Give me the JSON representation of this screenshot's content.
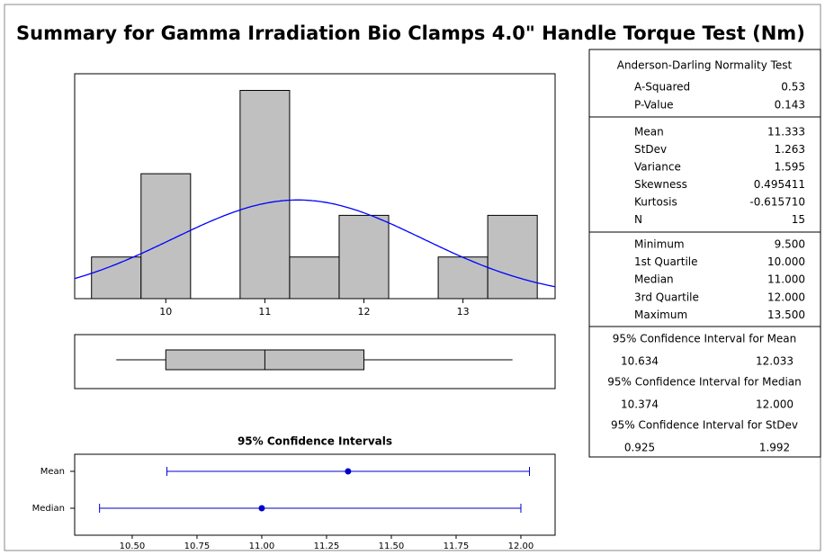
{
  "title": "Summary for Gamma Irradiation Bio Clamps 4.0\" Handle Torque Test (Nm)",
  "chart_data": [
    {
      "type": "histogram",
      "bins": [
        9.25,
        9.75,
        10.25,
        10.75,
        11.25,
        11.75,
        12.25,
        12.75,
        13.25,
        13.75
      ],
      "counts": [
        1,
        3,
        0,
        5,
        1,
        2,
        0,
        1,
        2
      ],
      "color": "#c0c0c0",
      "curve_color": "#0000ff",
      "xlim": [
        9.08,
        13.93
      ],
      "ylim": [
        0,
        5.4
      ],
      "xticks": [
        10,
        11,
        12,
        13
      ]
    },
    {
      "type": "box",
      "color": "#c0c0c0",
      "xlim": [
        9.08,
        13.93
      ]
    },
    {
      "type": "interval",
      "title": "95% Confidence Intervals",
      "categories": [
        "Mean",
        "Median"
      ],
      "color": "#0000cc",
      "xlim": [
        10.278,
        12.132
      ],
      "xticks": [
        {
          "value": 10.5,
          "label": "10.50"
        },
        {
          "value": 10.75,
          "label": "10.75"
        },
        {
          "value": 11,
          "label": "11.00"
        },
        {
          "value": 11.25,
          "label": "11.25"
        },
        {
          "value": 11.5,
          "label": "11.50"
        },
        {
          "value": 11.75,
          "label": "11.75"
        },
        {
          "value": 12,
          "label": "12.00"
        }
      ]
    }
  ],
  "stats": {
    "normality": {
      "title": "Anderson-Darling Normality Test",
      "rows": [
        [
          "A-Squared",
          "0.53"
        ],
        [
          "P-Value",
          "0.143"
        ]
      ]
    },
    "descriptive": {
      "rows": [
        [
          "Mean",
          "11.333"
        ],
        [
          "StDev",
          "1.263"
        ],
        [
          "Variance",
          "1.595"
        ],
        [
          "Skewness",
          "0.495411"
        ],
        [
          "Kurtosis",
          "-0.615710"
        ],
        [
          "N",
          "15"
        ]
      ]
    },
    "quantiles": {
      "rows": [
        [
          "Minimum",
          "9.500"
        ],
        [
          "1st Quartile",
          "10.000"
        ],
        [
          "Median",
          "11.000"
        ],
        [
          "3rd Quartile",
          "12.000"
        ],
        [
          "Maximum",
          "13.500"
        ]
      ]
    },
    "intervals": [
      {
        "title": "95% Confidence Interval for Mean",
        "lower": "10.634",
        "upper": "12.033"
      },
      {
        "title": "95% Confidence Interval for Median",
        "lower": "10.374",
        "upper": "12.000"
      },
      {
        "title": "95% Confidence Interval for StDev",
        "lower": "0.925",
        "upper": "1.992"
      }
    ]
  }
}
